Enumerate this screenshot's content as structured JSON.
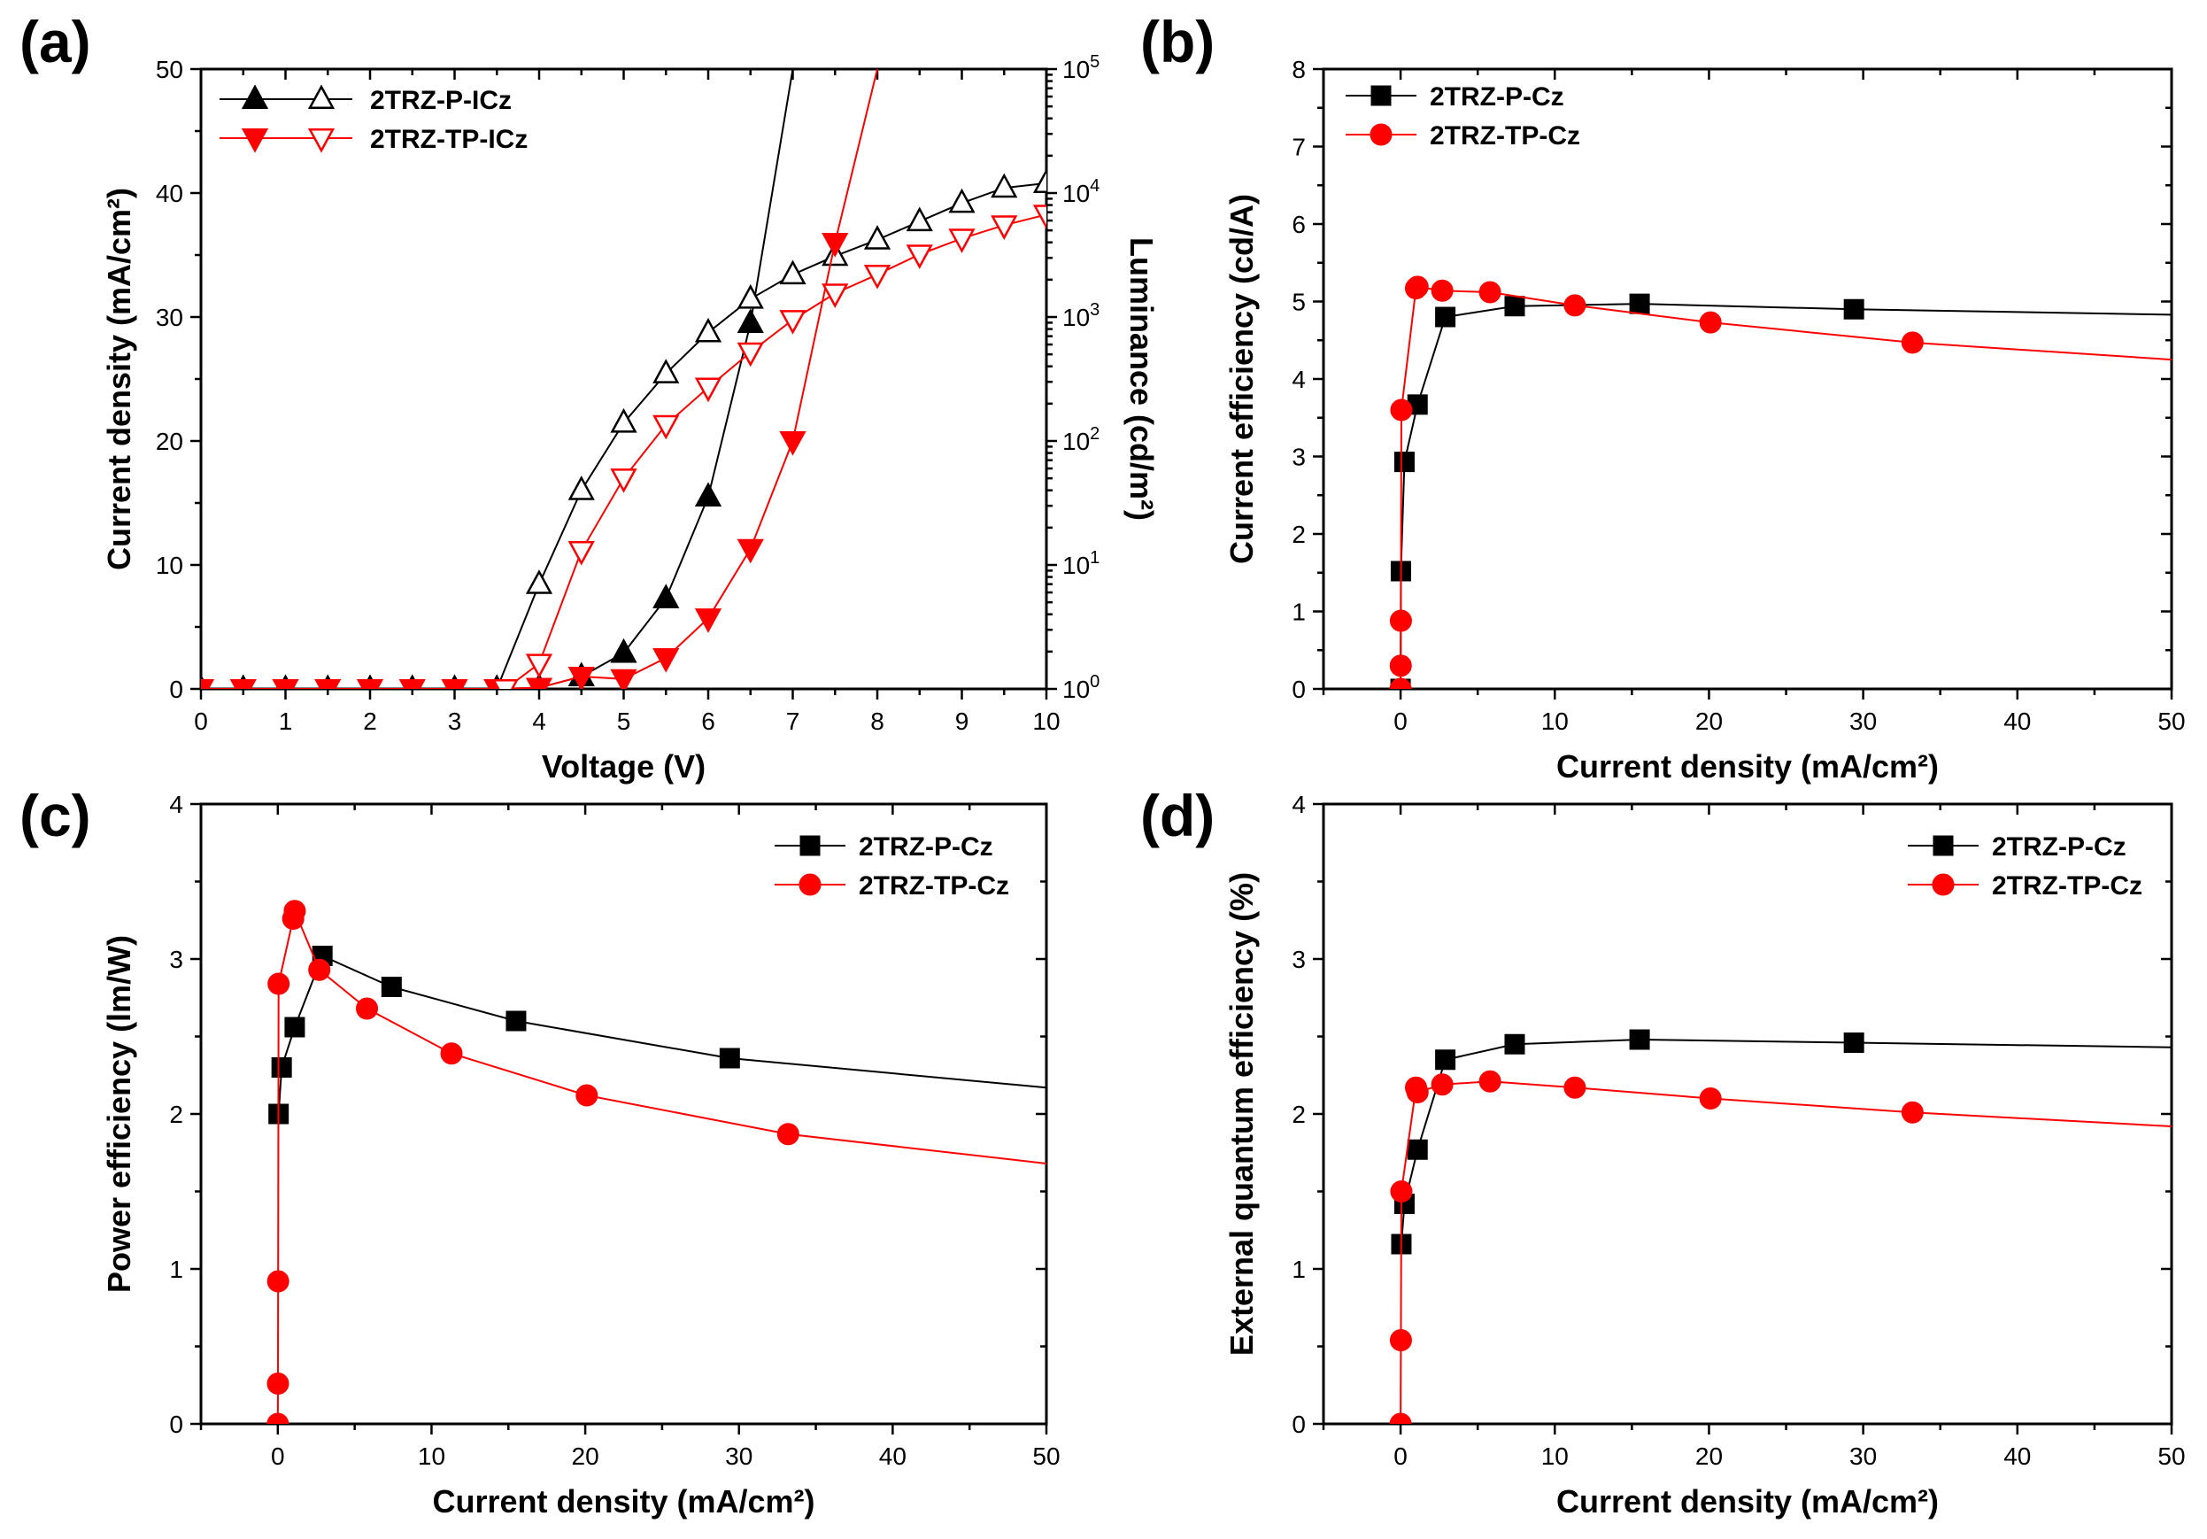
{
  "chart_data": [
    {
      "panel": "(a)",
      "type": "line",
      "xlabel": "Voltage (V)",
      "ylabel": "Current density (mA/cm²)",
      "y2label": "Luminance (cd/m²)",
      "xlim": [
        0,
        10
      ],
      "ylim": [
        0,
        50
      ],
      "y2lim_log10": [
        0,
        5
      ],
      "xticks": [
        0,
        1,
        2,
        3,
        4,
        5,
        6,
        7,
        8,
        9,
        10
      ],
      "yticks": [
        0,
        10,
        20,
        30,
        40,
        50
      ],
      "y2ticks_exp": [
        0,
        1,
        2,
        3,
        4,
        5
      ],
      "legend_position": "top-left",
      "series": [
        {
          "name": "2TRZ-P-ICz",
          "color": "#000000",
          "axis": "left",
          "marker": "triangle-up-filled",
          "x": [
            0,
            0.5,
            1,
            1.5,
            2,
            2.5,
            3,
            3.5,
            4,
            4.5,
            5,
            5.5,
            6,
            6.5,
            7.0
          ],
          "y": [
            0,
            0,
            0,
            0,
            0,
            0,
            0,
            0,
            0.1,
            1.0,
            2.9,
            7.3,
            15.5,
            29.5,
            50
          ],
          "marker_count": 14
        },
        {
          "name": "2TRZ-P-ICz",
          "color": "#000000",
          "axis": "right",
          "marker": "triangle-up-open",
          "x": [
            3.5,
            4,
            4.5,
            5,
            5.5,
            6,
            6.5,
            7,
            7.5,
            8,
            8.5,
            9,
            9.5,
            10
          ],
          "y": [
            1,
            7,
            40,
            140,
            350,
            750,
            1400,
            2200,
            3100,
            4200,
            5900,
            8300,
            11000,
            12000
          ]
        },
        {
          "name": "2TRZ-TP-ICz",
          "color": "#ff0000",
          "axis": "left",
          "marker": "triangle-down-filled",
          "x": [
            0,
            0.5,
            1,
            1.5,
            2,
            2.5,
            3,
            3.5,
            4,
            4.5,
            5,
            5.5,
            6,
            6.5,
            7,
            7.5,
            8.0
          ],
          "y": [
            0,
            0,
            0,
            0,
            0,
            0,
            0,
            0,
            0.1,
            1.0,
            0.8,
            2.5,
            5.7,
            11.3,
            20.0,
            36.0,
            50
          ],
          "marker_count": 16
        },
        {
          "name": "2TRZ-TP-ICz",
          "color": "#ff0000",
          "axis": "right",
          "marker": "triangle-down-open",
          "x": [
            3.6,
            4,
            4.5,
            5,
            5.5,
            6,
            6.5,
            7,
            7.5,
            8,
            8.5,
            9,
            9.5,
            10
          ],
          "y": [
            1,
            1.6,
            13,
            50,
            135,
            270,
            520,
            950,
            1550,
            2200,
            3200,
            4300,
            5500,
            6700
          ]
        }
      ],
      "legend": [
        {
          "label": "2TRZ-P-ICz",
          "color": "#000000",
          "open": false,
          "dir": "up"
        },
        {
          "label": "2TRZ-TP-ICz",
          "color": "#ff0000",
          "open": false,
          "dir": "down"
        }
      ]
    },
    {
      "panel": "(b)",
      "type": "line",
      "xlabel": "Current density (mA/cm²)",
      "ylabel": "Current efficiency (cd/A)",
      "xlim": [
        -5,
        50
      ],
      "ylim": [
        0,
        8
      ],
      "xticks": [
        0,
        10,
        20,
        30,
        40,
        50
      ],
      "yticks": [
        0,
        1,
        2,
        3,
        4,
        5,
        6,
        7,
        8
      ],
      "legend_position": "top-left",
      "series": [
        {
          "name": "2TRZ-P-Cz",
          "color": "#000000",
          "marker": "square",
          "x": [
            0.0,
            0.02,
            0.25,
            1.1,
            2.9,
            7.4,
            15.5,
            29.4,
            50
          ],
          "y": [
            0.0,
            1.52,
            2.93,
            3.67,
            4.8,
            4.94,
            4.97,
            4.9,
            4.83
          ],
          "marker_count": 8
        },
        {
          "name": "2TRZ-TP-Cz",
          "color": "#ff0000",
          "marker": "circle",
          "x": [
            0.0,
            0.01,
            0.02,
            0.05,
            1.0,
            1.1,
            2.7,
            5.8,
            11.3,
            20.1,
            33.2,
            50
          ],
          "y": [
            0.0,
            0.3,
            0.88,
            3.6,
            5.17,
            5.19,
            5.14,
            5.12,
            4.95,
            4.73,
            4.47,
            4.25
          ],
          "marker_count": 11
        }
      ]
    },
    {
      "panel": "(c)",
      "type": "line",
      "xlabel": "Current density (mA/cm²)",
      "ylabel": "Power efficiency (lm/W)",
      "xlim": [
        -5,
        50
      ],
      "ylim": [
        0,
        4
      ],
      "xticks": [
        0,
        10,
        20,
        30,
        40,
        50
      ],
      "yticks": [
        0,
        1,
        2,
        3,
        4
      ],
      "legend_position": "top-right",
      "series": [
        {
          "name": "2TRZ-P-Cz",
          "color": "#000000",
          "marker": "square",
          "x": [
            0.05,
            0.25,
            1.1,
            2.9,
            7.4,
            15.5,
            29.4,
            50
          ],
          "y": [
            2.0,
            2.3,
            2.56,
            3.02,
            2.82,
            2.6,
            2.36,
            2.17
          ],
          "marker_count": 7
        },
        {
          "name": "2TRZ-TP-Cz",
          "color": "#ff0000",
          "marker": "circle",
          "x": [
            0.0,
            0.01,
            0.02,
            0.05,
            1.0,
            1.1,
            2.7,
            5.8,
            11.3,
            20.1,
            33.2,
            50
          ],
          "y": [
            0.0,
            0.26,
            0.92,
            2.84,
            3.26,
            3.31,
            2.93,
            2.68,
            2.39,
            2.12,
            1.87,
            1.68
          ],
          "marker_count": 11
        }
      ]
    },
    {
      "panel": "(d)",
      "type": "line",
      "xlabel": "Current density (mA/cm²)",
      "ylabel": "External quantum efficiency (%)",
      "xlim": [
        -5,
        50
      ],
      "ylim": [
        0,
        4
      ],
      "xticks": [
        0,
        10,
        20,
        30,
        40,
        50
      ],
      "yticks": [
        0,
        1,
        2,
        3,
        4
      ],
      "legend_position": "top-right",
      "series": [
        {
          "name": "2TRZ-P-Cz",
          "color": "#000000",
          "marker": "square",
          "x": [
            0.05,
            0.25,
            1.1,
            2.9,
            7.4,
            15.5,
            29.4,
            50
          ],
          "y": [
            1.16,
            1.42,
            1.77,
            2.35,
            2.45,
            2.48,
            2.46,
            2.43
          ],
          "marker_count": 7
        },
        {
          "name": "2TRZ-TP-Cz",
          "color": "#ff0000",
          "marker": "circle",
          "x": [
            0.0,
            0.02,
            0.05,
            1.0,
            1.1,
            2.7,
            5.8,
            11.3,
            20.1,
            33.2,
            50
          ],
          "y": [
            0.0,
            0.54,
            1.5,
            2.17,
            2.14,
            2.19,
            2.21,
            2.17,
            2.1,
            2.01,
            1.92
          ],
          "marker_count": 10
        }
      ]
    }
  ]
}
